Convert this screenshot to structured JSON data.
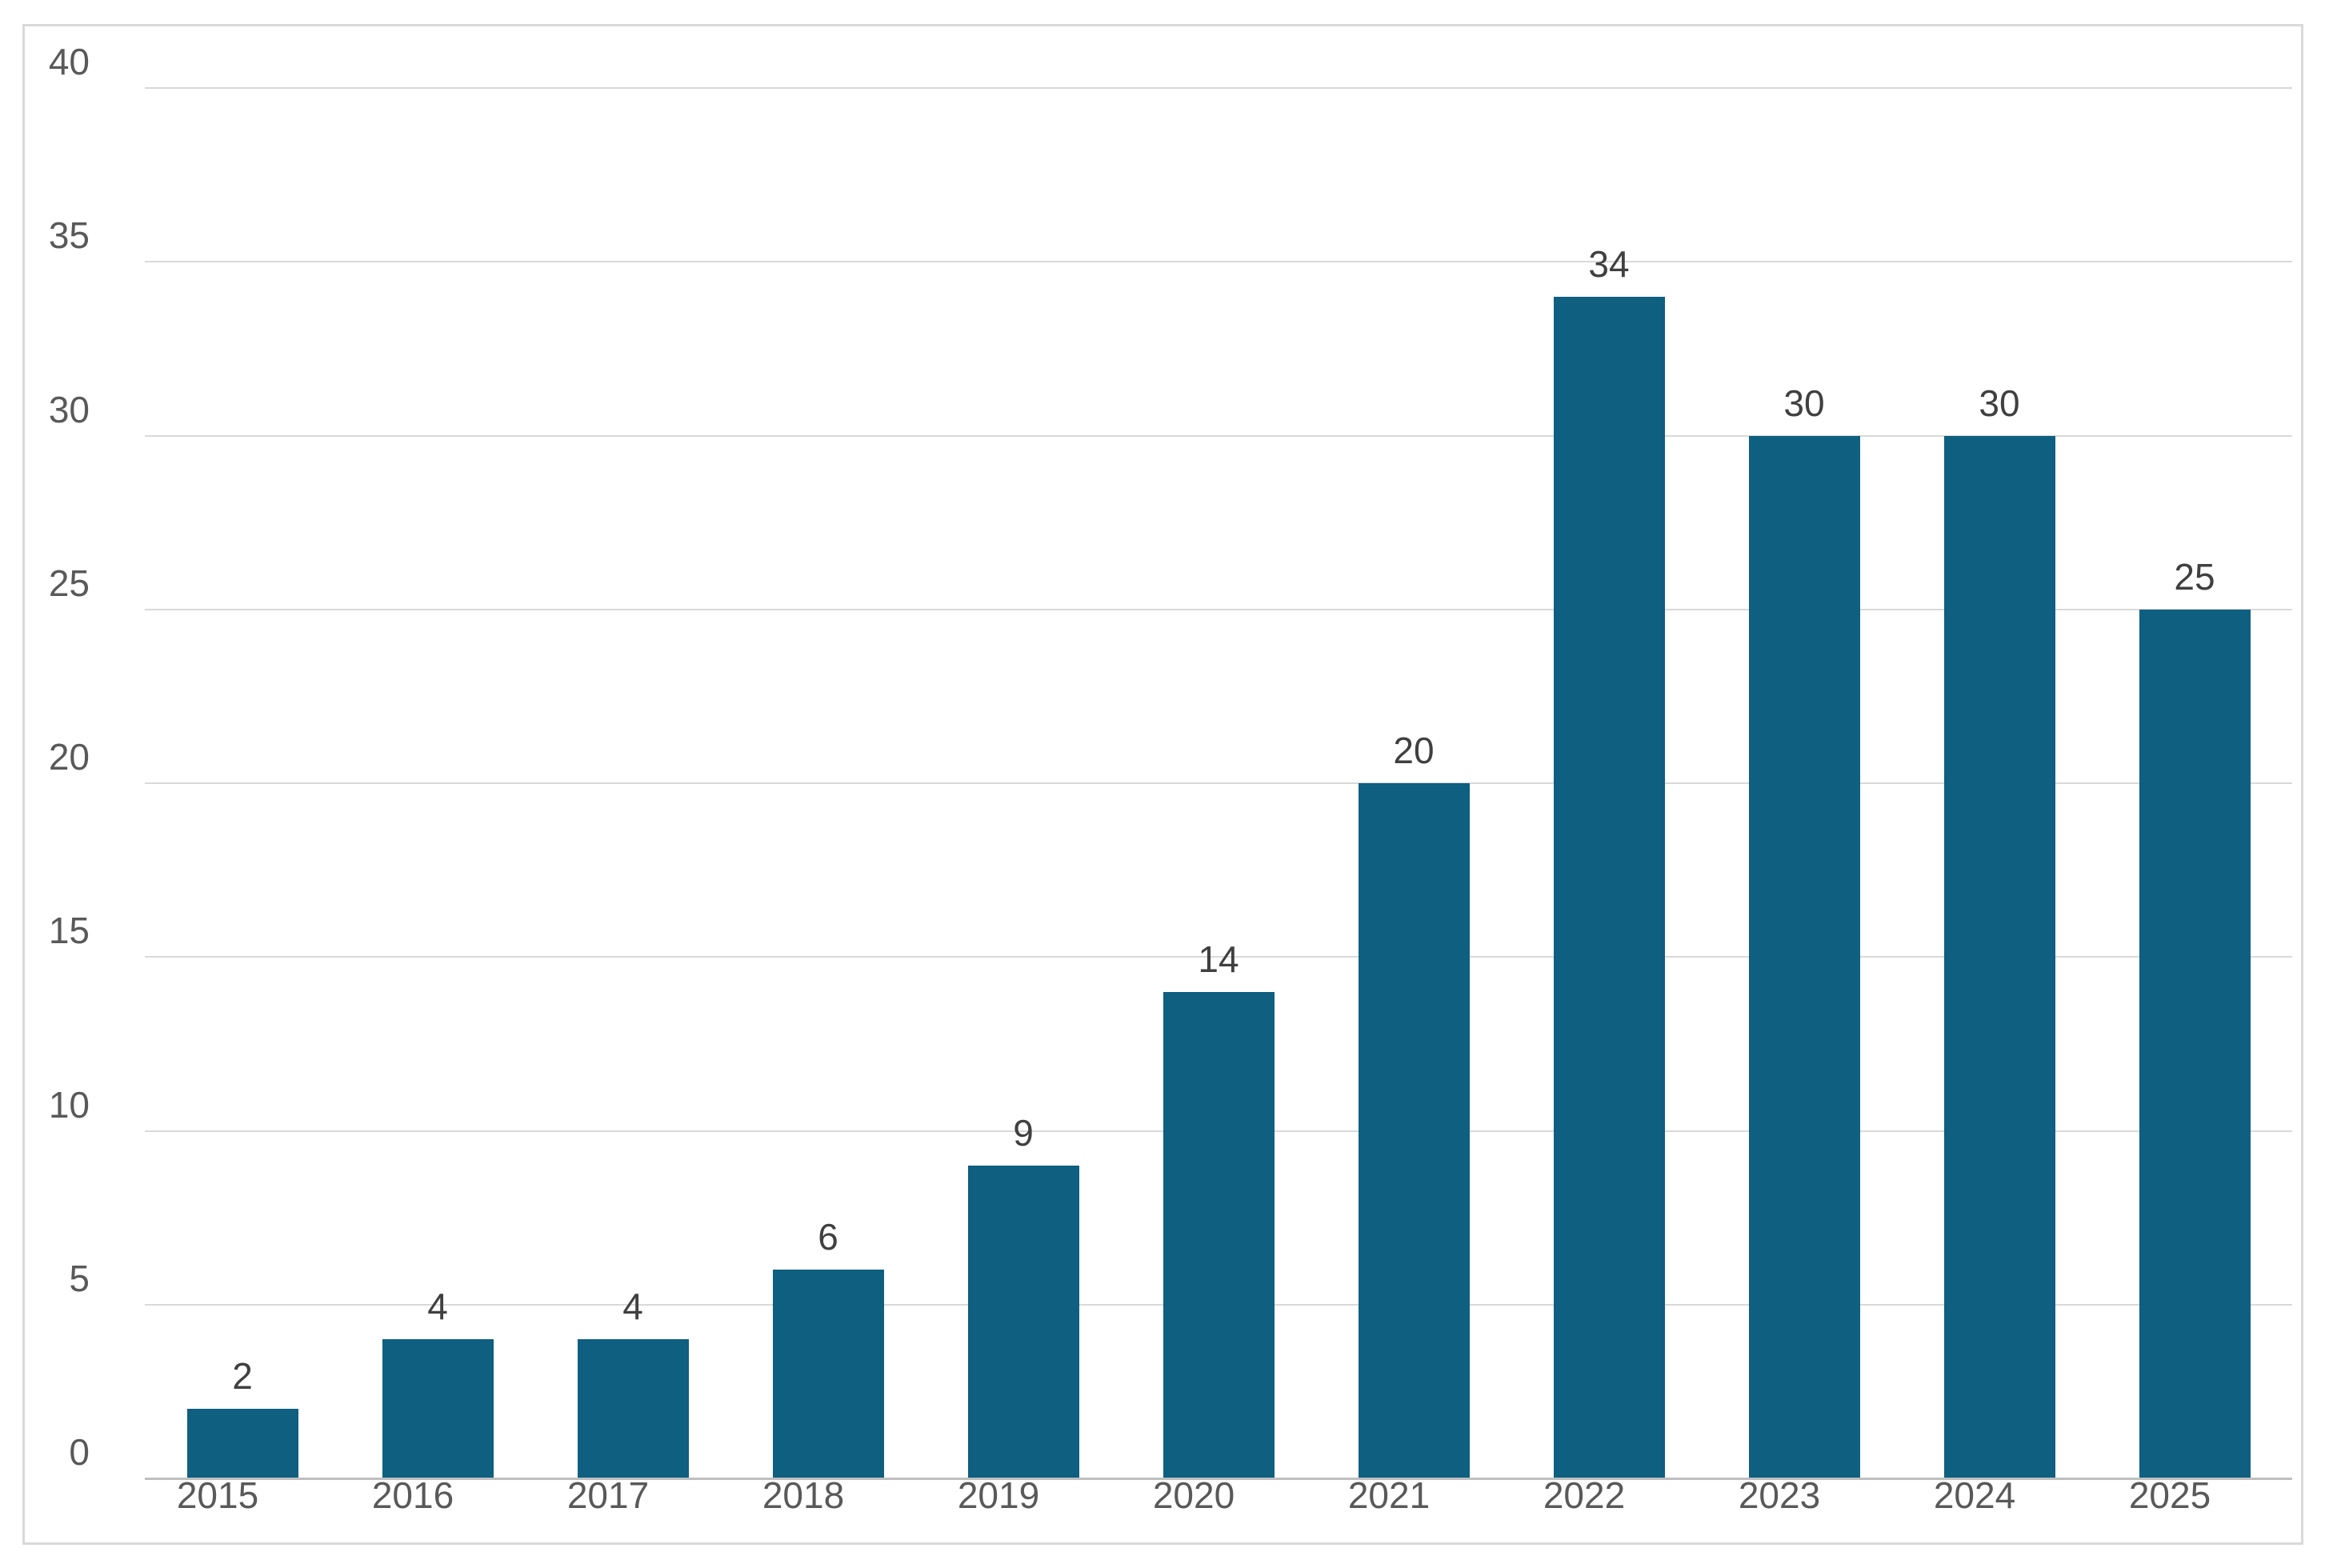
{
  "chart_data": {
    "type": "bar",
    "title": "",
    "xlabel": "",
    "ylabel": "",
    "categories": [
      "2015",
      "2016",
      "2017",
      "2018",
      "2019",
      "2020",
      "2021",
      "2022",
      "2023",
      "2024",
      "2025"
    ],
    "values": [
      2,
      4,
      4,
      6,
      9,
      14,
      20,
      34,
      30,
      30,
      25
    ],
    "yticks": [
      "0",
      "5",
      "10",
      "15",
      "20",
      "25",
      "30",
      "35",
      "40"
    ],
    "ytick_values": [
      0,
      5,
      10,
      15,
      20,
      25,
      30,
      35,
      40
    ],
    "ylim": [
      0,
      40
    ],
    "grid": true,
    "legend_position": "none",
    "data_labels_shown": true
  },
  "colors": {
    "bar": "#0E5F80",
    "gridline": "#D9D9D9",
    "axis_line": "#BFBFBF",
    "tick_label": "#595959",
    "data_label": "#404040",
    "border": "#D9D9D9",
    "background": "#FFFFFF"
  }
}
